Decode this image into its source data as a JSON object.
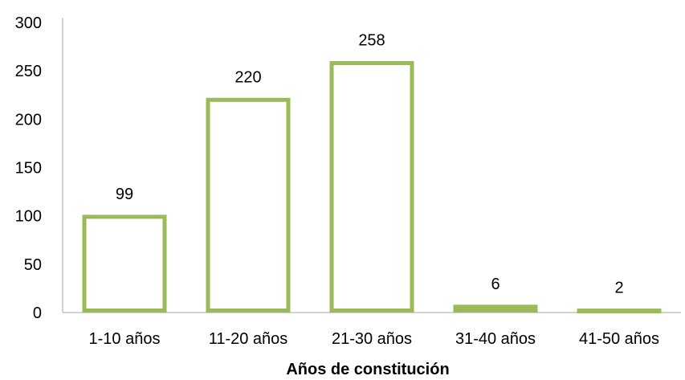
{
  "chart_data": {
    "type": "bar",
    "categories": [
      "1-10 años",
      "11-20 años",
      "21-30 años",
      "31-40 años",
      "41-50 años"
    ],
    "values": [
      99,
      220,
      258,
      6,
      2
    ],
    "title": "",
    "xlabel": "Años de constitución",
    "ylabel": "",
    "ylim": [
      0,
      300
    ],
    "yticks": [
      0,
      50,
      100,
      150,
      200,
      250,
      300
    ],
    "data_labels": true,
    "grid": false,
    "legend": "none",
    "colors": {
      "bar_fill": "#ffffff",
      "bar_stroke": "#9bbb59",
      "axis": "#a6a6a6",
      "text": "#000000"
    }
  }
}
